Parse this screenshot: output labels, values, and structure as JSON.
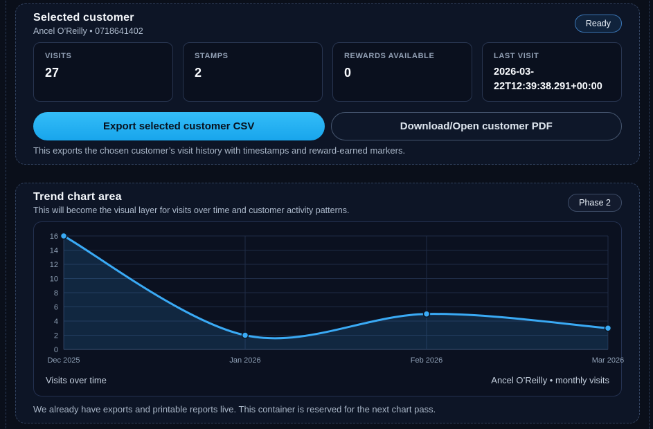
{
  "customer_panel": {
    "title": "Selected customer",
    "subtitle": "Ancel O’Reilly • 0718641402",
    "status_badge": "Ready",
    "stats": [
      {
        "label": "VISITS",
        "value": "27"
      },
      {
        "label": "STAMPS",
        "value": "2"
      },
      {
        "label": "REWARDS AVAILABLE",
        "value": "0"
      },
      {
        "label": "LAST VISIT",
        "value": "2026-03-22T12:39:38.291+00:00"
      }
    ],
    "buttons": {
      "export_csv": "Export selected customer CSV",
      "download_pdf": "Download/Open customer PDF"
    },
    "helper_text": "This exports the chosen customer’s visit history with timestamps and reward-earned markers."
  },
  "trend_panel": {
    "title": "Trend chart area",
    "subtitle": "This will become the visual layer for visits over time and customer activity patterns.",
    "status_badge": "Phase 2",
    "footer_left": "Visits over time",
    "footer_right": "Ancel O’Reilly • monthly visits",
    "helper_text": "We already have exports and printable reports live. This container is reserved for the next chart pass."
  },
  "chart_data": {
    "type": "line",
    "title": "Visits over time",
    "x": [
      "Dec 2025",
      "Jan 2026",
      "Feb 2026",
      "Mar 2026"
    ],
    "series": [
      {
        "name": "Ancel O’Reilly monthly visits",
        "values": [
          16,
          2,
          5,
          3
        ]
      }
    ],
    "ylim": [
      0,
      16
    ],
    "yticks": [
      0,
      2,
      4,
      6,
      8,
      10,
      12,
      14,
      16
    ],
    "grid": true,
    "smooth": true,
    "legend_position": "none",
    "line_color": "#3aaaf5",
    "area_fill": "rgba(56,165,245,0.15)",
    "grid_color": "#1f2c46",
    "axis_color": "#3c4c69",
    "tick_color": "#8fa0b5"
  },
  "colors": {
    "accent": "#29b6f6",
    "panel_bg": "#0d1526",
    "card_bg": "#0a101e",
    "badge_border_blue": "#3b77b7"
  }
}
